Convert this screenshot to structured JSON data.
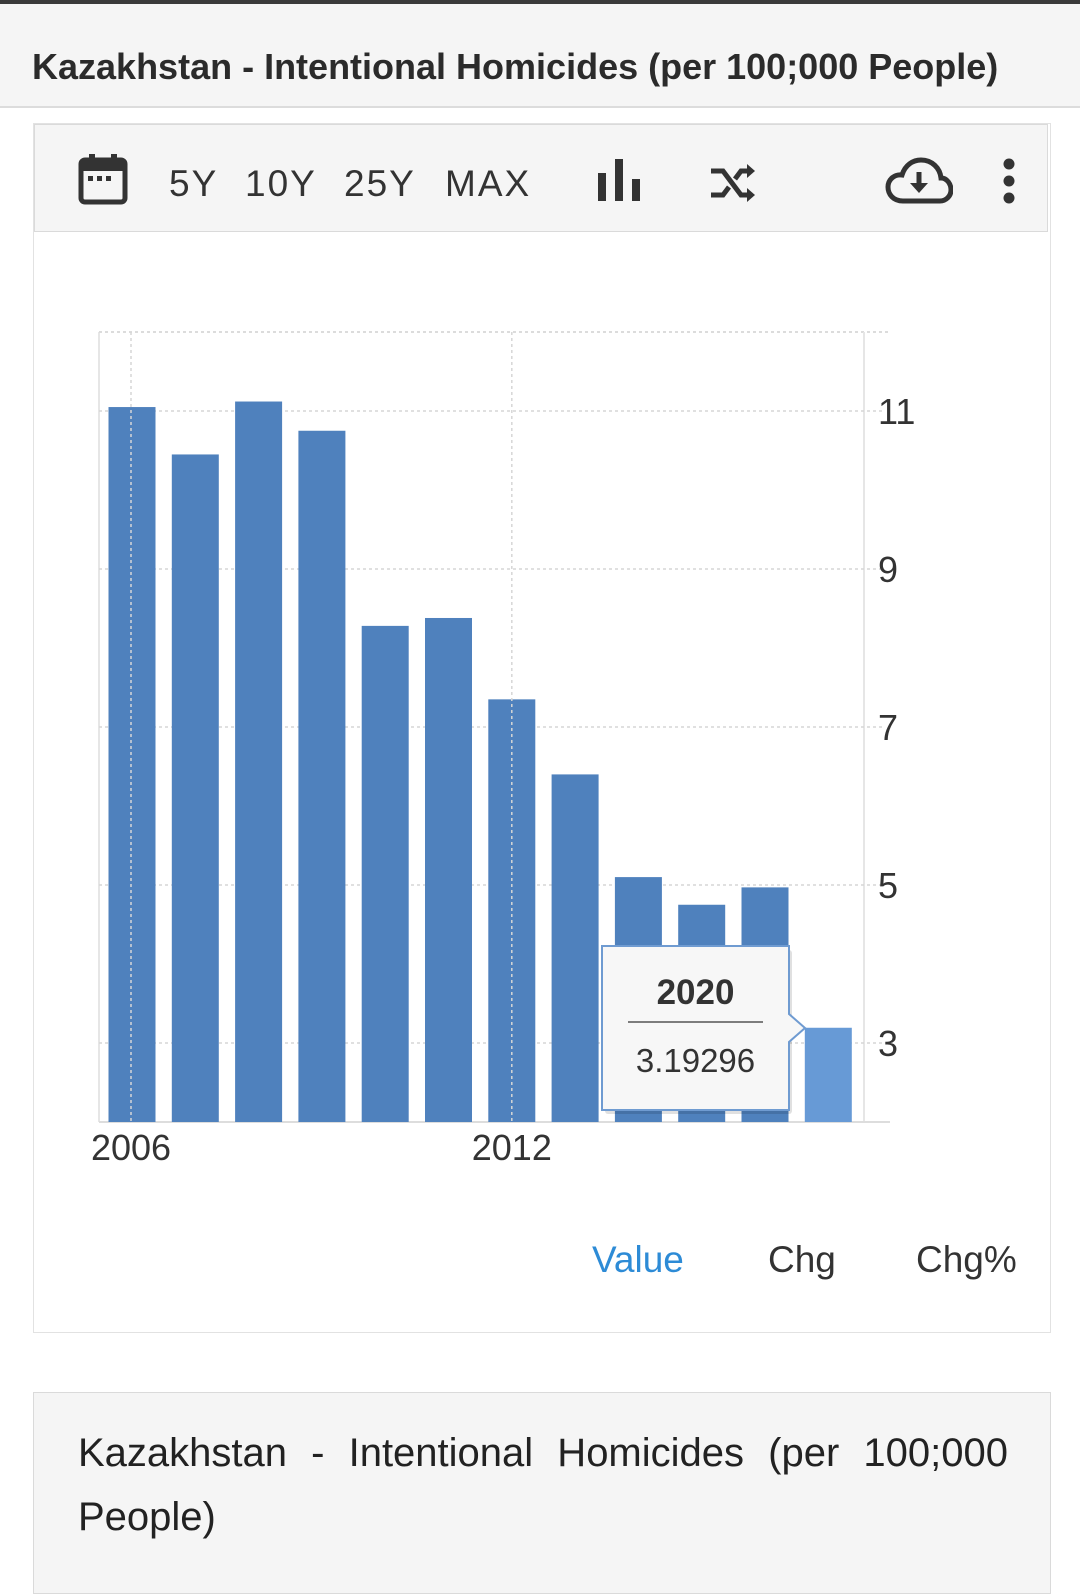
{
  "page": {
    "title": "Kazakhstan - Intentional Homicides (per 100;000 People)"
  },
  "toolbar": {
    "calendar_icon": "calendar-icon",
    "ranges": [
      "5Y",
      "10Y",
      "25Y",
      "MAX"
    ],
    "bar_chart_icon": "bar-chart-icon",
    "shuffle_icon": "shuffle-icon",
    "download_icon": "cloud-download-icon",
    "more_icon": "more-vertical-icon"
  },
  "tabs": [
    {
      "label": "Value",
      "active": true
    },
    {
      "label": "Chg",
      "active": false
    },
    {
      "label": "Chg%",
      "active": false
    }
  ],
  "tooltip": {
    "year": "2020",
    "value": "3.19296"
  },
  "bottom": {
    "text": "Kazakhstan - Intentional Homicides (per 100;000 People)"
  },
  "colors": {
    "bar": "#4f81bd",
    "bar_highlight": "#679ad6",
    "accent": "#2d8bd6"
  },
  "chart_data": {
    "type": "bar",
    "categories": [
      "2006",
      "2007",
      "2008",
      "2009",
      "2010",
      "2011",
      "2012",
      "2013",
      "2014",
      "2015",
      "2016",
      "2020"
    ],
    "values": [
      11.05,
      10.45,
      11.12,
      10.75,
      8.28,
      8.38,
      7.35,
      6.4,
      5.1,
      4.75,
      4.97,
      3.19296
    ],
    "x_tick_labels": [
      "2006",
      "2012"
    ],
    "y_ticks": [
      3,
      5,
      7,
      9,
      11
    ],
    "ylim": [
      2.0,
      12.0
    ],
    "title": "",
    "xlabel": "",
    "ylabel": "",
    "grid": true,
    "y_axis_side": "right",
    "highlighted_index": 11
  }
}
